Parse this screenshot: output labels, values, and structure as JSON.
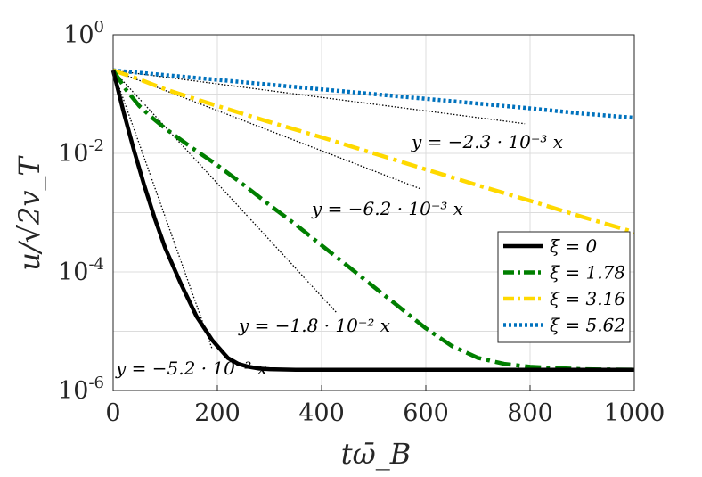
{
  "chart_data": {
    "type": "line",
    "title": "",
    "xlabel": "tω̄_B",
    "ylabel": "u/√2v_T",
    "xlim": [
      0,
      1000
    ],
    "ylim_log10": [
      -6,
      0
    ],
    "x_ticks": [
      {
        "value": 0,
        "label": "0"
      },
      {
        "value": 200,
        "label": "200"
      },
      {
        "value": 400,
        "label": "400"
      },
      {
        "value": 600,
        "label": "600"
      },
      {
        "value": 800,
        "label": "800"
      },
      {
        "value": 1000,
        "label": "1000"
      }
    ],
    "y_ticks": [
      {
        "exp": 0,
        "base": "10",
        "power": "0"
      },
      {
        "exp": -2,
        "base": "10",
        "power": "-2"
      },
      {
        "exp": -4,
        "base": "10",
        "power": "-4"
      },
      {
        "exp": -6,
        "base": "10",
        "power": "-6"
      }
    ],
    "grid": true,
    "legend_position": "bottom-right",
    "series": [
      {
        "name": "ξ = 0",
        "color": "#000000",
        "style": "solid",
        "x": [
          0,
          20,
          40,
          60,
          80,
          100,
          130,
          160,
          190,
          220,
          240,
          260,
          280,
          300,
          350,
          400,
          500,
          600,
          700,
          800,
          900,
          1000
        ],
        "log10y": [
          -0.6,
          -1.3,
          -1.95,
          -2.55,
          -3.1,
          -3.6,
          -4.2,
          -4.75,
          -5.15,
          -5.45,
          -5.55,
          -5.6,
          -5.63,
          -5.64,
          -5.65,
          -5.65,
          -5.65,
          -5.65,
          -5.65,
          -5.65,
          -5.65,
          -5.65
        ]
      },
      {
        "name": "ξ = 1.78",
        "color": "#007f00",
        "style": "dashdot",
        "x": [
          0,
          25,
          50,
          75,
          100,
          150,
          200,
          250,
          300,
          350,
          400,
          450,
          500,
          550,
          600,
          650,
          700,
          750,
          800,
          850,
          900,
          1000
        ],
        "log10y": [
          -0.6,
          -0.93,
          -1.2,
          -1.4,
          -1.58,
          -1.9,
          -2.2,
          -2.53,
          -2.87,
          -3.2,
          -3.55,
          -3.9,
          -4.25,
          -4.6,
          -4.95,
          -5.25,
          -5.45,
          -5.55,
          -5.6,
          -5.62,
          -5.64,
          -5.65
        ]
      },
      {
        "name": "ξ = 3.16",
        "color": "#ffd900",
        "style": "dashdot",
        "x": [
          0,
          50,
          100,
          200,
          300,
          400,
          500,
          600,
          700,
          800,
          900,
          1000
        ],
        "log10y": [
          -0.6,
          -0.75,
          -0.92,
          -1.2,
          -1.47,
          -1.73,
          -2.0,
          -2.27,
          -2.54,
          -2.8,
          -3.07,
          -3.33
        ]
      },
      {
        "name": "ξ = 5.62",
        "color": "#0072bd",
        "style": "dotted",
        "x": [
          0,
          100,
          200,
          300,
          400,
          500,
          600,
          700,
          800,
          900,
          1000
        ],
        "log10y": [
          -0.6,
          -0.68,
          -0.76,
          -0.84,
          -0.92,
          -1.0,
          -1.08,
          -1.16,
          -1.24,
          -1.33,
          -1.4
        ]
      }
    ],
    "fits": [
      {
        "label": "y = −5.2 · 10⁻² x",
        "x0": 0,
        "x1": 190,
        "log10y0": -0.6,
        "log10y1": -5.3
      },
      {
        "label": "y = −1.8 · 10⁻² x",
        "x0": 0,
        "x1": 430,
        "log10y0": -0.6,
        "log10y1": -4.7
      },
      {
        "label": "y = −6.2 · 10⁻³ x",
        "x0": 0,
        "x1": 590,
        "log10y0": -0.6,
        "log10y1": -2.6
      },
      {
        "label": "y = −2.3 · 10⁻³ x",
        "x0": 0,
        "x1": 790,
        "log10y0": -0.6,
        "log10y1": -1.5
      }
    ]
  }
}
